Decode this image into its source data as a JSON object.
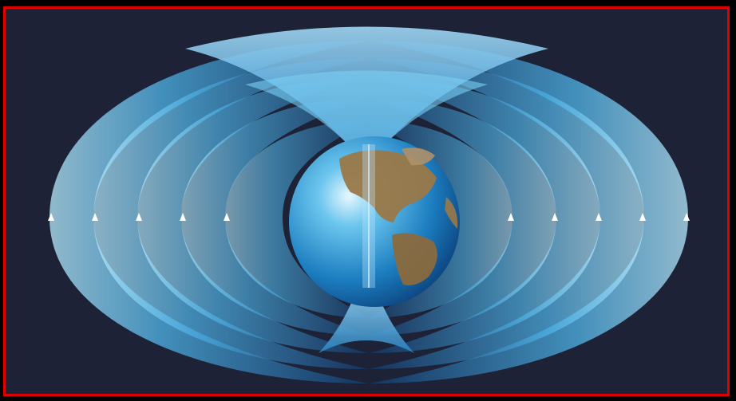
{
  "image": {
    "alt": "",
    "colors": {
      "background": "#1d2236",
      "frame_border": "#e00000",
      "field_light": "#9fe0ff",
      "field_mid": "#3aa0dc",
      "field_dark": "#123a6e",
      "ocean": "#1e86c6",
      "land": "#9a7848"
    },
    "icons": [
      "earth-globe",
      "field-arrow"
    ]
  }
}
